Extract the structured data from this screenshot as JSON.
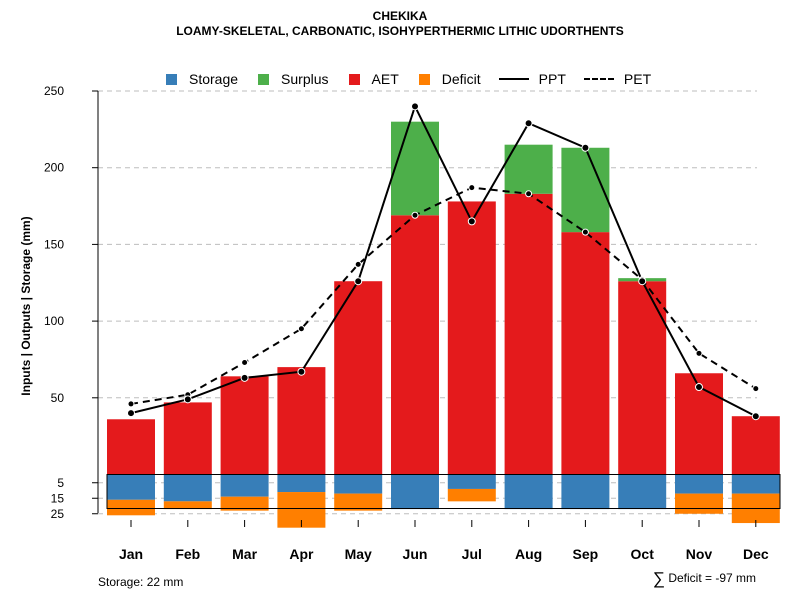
{
  "chart_data": {
    "type": "bar",
    "title": "CHEKIKA",
    "subtitle": "LOAMY-SKELETAL, CARBONATIC, ISOHYPERTHERMIC LITHIC UDORTHENTS",
    "ylabel": "Inputs | Outputs | Storage    (mm)",
    "ylim": [
      0,
      250
    ],
    "yticks_upper": [
      "50",
      "100",
      "150",
      "200",
      "250"
    ],
    "yticks_lower": [
      "5",
      "15",
      "25"
    ],
    "categories": [
      "Jan",
      "Feb",
      "Mar",
      "Apr",
      "May",
      "Jun",
      "Jul",
      "Aug",
      "Sep",
      "Oct",
      "Nov",
      "Dec"
    ],
    "series": [
      {
        "name": "AET",
        "color": "#e41a1c",
        "values": [
          36,
          47,
          64,
          70,
          126,
          169,
          178,
          183,
          158,
          126,
          66,
          38
        ]
      },
      {
        "name": "Surplus",
        "color": "#4daf4a",
        "values": [
          0,
          0,
          0,
          0,
          0,
          61,
          0,
          32,
          55,
          2,
          0,
          0
        ]
      },
      {
        "name": "PPT",
        "style": "solid",
        "values": [
          40,
          49,
          63,
          67,
          126,
          240,
          165,
          229,
          213,
          126,
          57,
          38
        ]
      },
      {
        "name": "PET",
        "style": "dashed",
        "values": [
          46,
          52,
          73,
          95,
          137,
          169,
          187,
          183,
          158,
          127,
          79,
          56
        ]
      },
      {
        "name": "Storage",
        "color": "#377eb8",
        "values": [
          16,
          17,
          14,
          11,
          12,
          22,
          9,
          22,
          22,
          22,
          12,
          12
        ]
      },
      {
        "name": "Deficit",
        "color": "#ff7f00",
        "values": [
          10,
          5,
          9,
          23,
          11,
          0,
          8,
          0,
          0,
          0,
          13,
          19
        ]
      }
    ],
    "legend": [
      {
        "label": "Storage",
        "kind": "box",
        "color": "#377eb8"
      },
      {
        "label": "Surplus",
        "kind": "box",
        "color": "#4daf4a"
      },
      {
        "label": "AET",
        "kind": "box",
        "color": "#e41a1c"
      },
      {
        "label": "Deficit",
        "kind": "box",
        "color": "#ff7f00"
      },
      {
        "label": "PPT",
        "kind": "solid"
      },
      {
        "label": "PET",
        "kind": "dashed"
      }
    ],
    "storage_note": "Storage: 22 mm",
    "deficit_note_symbol": "∑",
    "deficit_note": "Deficit = -97 mm"
  }
}
